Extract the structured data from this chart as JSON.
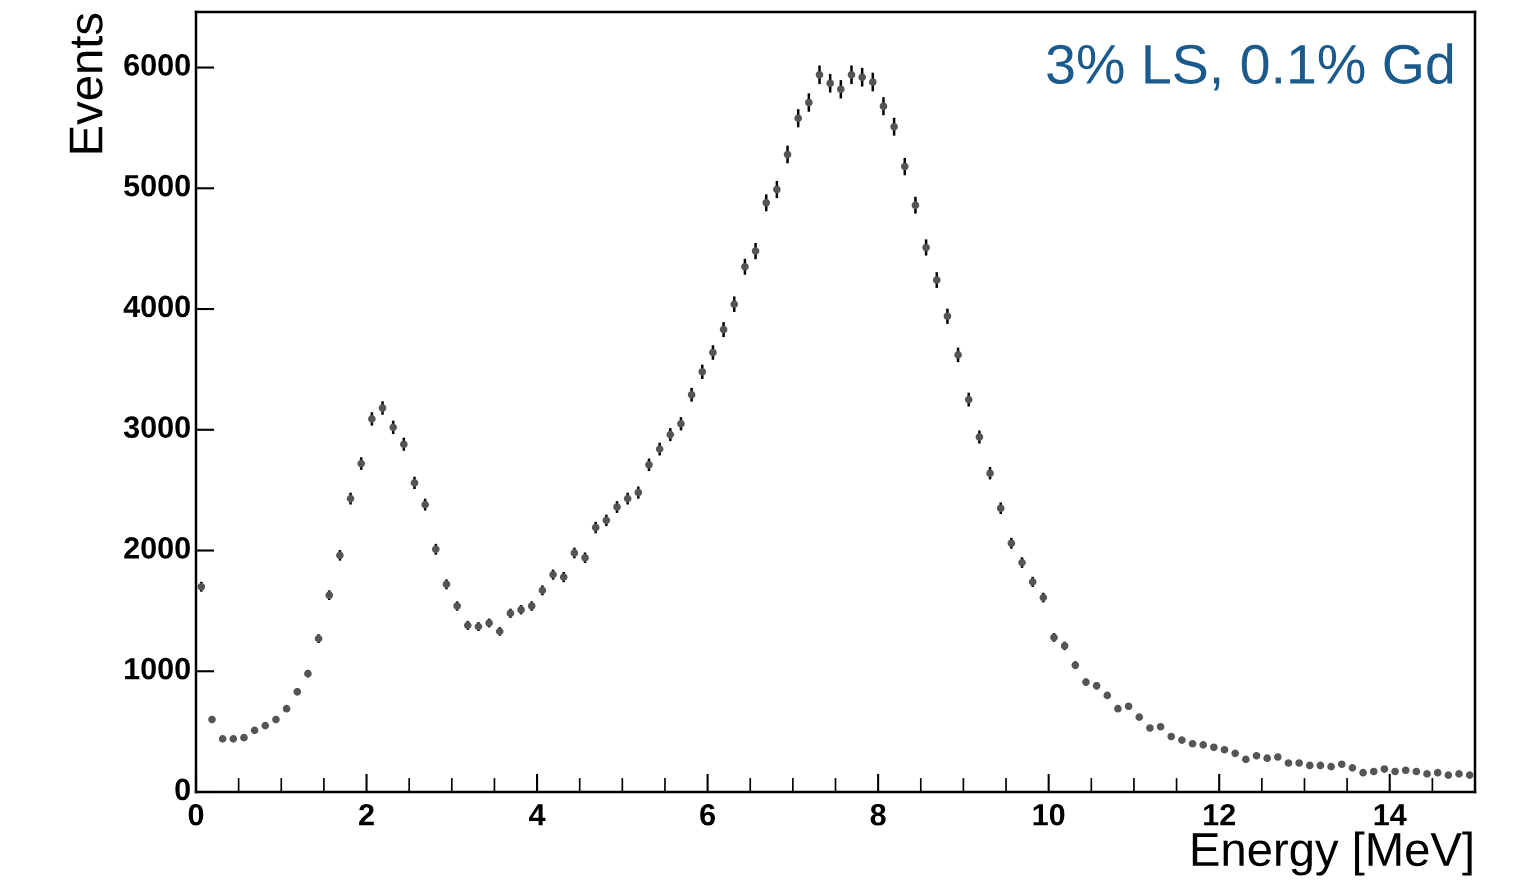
{
  "chart_data": {
    "type": "scatter",
    "xlabel": "Energy [MeV]",
    "ylabel": "Events",
    "annotations": [
      "3% LS, 0.1% Gd"
    ],
    "xlim": [
      0,
      15
    ],
    "xticks": [
      0,
      2,
      4,
      6,
      8,
      10,
      12,
      14
    ],
    "ylim": [
      0,
      6460
    ],
    "yticks": [
      0,
      1000,
      2000,
      3000,
      4000,
      5000,
      6000
    ],
    "grid": false,
    "marker": "circle",
    "x": [
      0.0625,
      0.1875,
      0.3125,
      0.4375,
      0.5625,
      0.6875,
      0.8125,
      0.9375,
      1.0625,
      1.1875,
      1.3125,
      1.4375,
      1.5625,
      1.6875,
      1.8125,
      1.9375,
      2.0625,
      2.1875,
      2.3125,
      2.4375,
      2.5625,
      2.6875,
      2.8125,
      2.9375,
      3.0625,
      3.1875,
      3.3125,
      3.4375,
      3.5625,
      3.6875,
      3.8125,
      3.9375,
      4.0625,
      4.1875,
      4.3125,
      4.4375,
      4.5625,
      4.6875,
      4.8125,
      4.9375,
      5.0625,
      5.1875,
      5.3125,
      5.4375,
      5.5625,
      5.6875,
      5.8125,
      5.9375,
      6.0625,
      6.1875,
      6.3125,
      6.4375,
      6.5625,
      6.6875,
      6.8125,
      6.9375,
      7.0625,
      7.1875,
      7.3125,
      7.4375,
      7.5625,
      7.6875,
      7.8125,
      7.9375,
      8.0625,
      8.1875,
      8.3125,
      8.4375,
      8.5625,
      8.6875,
      8.8125,
      8.9375,
      9.0625,
      9.1875,
      9.3125,
      9.4375,
      9.5625,
      9.6875,
      9.8125,
      9.9375,
      10.0625,
      10.1875,
      10.3125,
      10.4375,
      10.5625,
      10.6875,
      10.8125,
      10.9375,
      11.0625,
      11.1875,
      11.3125,
      11.4375,
      11.5625,
      11.6875,
      11.8125,
      11.9375,
      12.0625,
      12.1875,
      12.3125,
      12.4375,
      12.5625,
      12.6875,
      12.8125,
      12.9375,
      13.0625,
      13.1875,
      13.3125,
      13.4375,
      13.5625,
      13.6875,
      13.8125,
      13.9375,
      14.0625,
      14.1875,
      14.3125,
      14.4375,
      14.5625,
      14.6875,
      14.8125,
      14.9375
    ],
    "series": [
      {
        "color": "#555555",
        "values": [
          1700,
          600,
          440,
          440,
          450,
          510,
          550,
          600,
          690,
          830,
          980,
          1270,
          1630,
          1960,
          2430,
          2720,
          3090,
          3180,
          3020,
          2880,
          2560,
          2380,
          2010,
          1720,
          1540,
          1380,
          1370,
          1400,
          1330,
          1480,
          1510,
          1540,
          1670,
          1800,
          1780,
          1980,
          1940,
          2190,
          2250,
          2360,
          2430,
          2480,
          2710,
          2840,
          2960,
          3050,
          3290,
          3480,
          3640,
          3830,
          4040,
          4350,
          4480,
          4880,
          4990,
          5280,
          5580,
          5710,
          5940,
          5870,
          5820,
          5940,
          5920,
          5880,
          5680,
          5510,
          5180,
          4860,
          4510,
          4240,
          3940,
          3620,
          3250,
          2940,
          2640,
          2350,
          2060,
          1900,
          1740,
          1610,
          1280,
          1210,
          1050,
          910,
          880,
          800,
          690,
          710,
          620,
          530,
          540,
          460,
          430,
          400,
          390,
          370,
          350,
          320,
          270,
          300,
          280,
          290,
          240,
          240,
          220,
          220,
          210,
          230,
          200,
          160,
          170,
          190,
          170,
          180,
          170,
          150,
          160,
          140,
          150,
          140
        ],
        "errors": [
          41,
          24,
          21,
          21,
          21,
          23,
          23,
          24,
          26,
          29,
          31,
          36,
          40,
          44,
          49,
          52,
          56,
          56,
          55,
          54,
          51,
          49,
          45,
          41,
          39,
          37,
          37,
          37,
          36,
          38,
          39,
          39,
          41,
          42,
          42,
          44,
          44,
          47,
          47,
          49,
          49,
          50,
          52,
          53,
          54,
          55,
          57,
          59,
          60,
          62,
          64,
          66,
          67,
          70,
          71,
          73,
          75,
          76,
          77,
          77,
          76,
          77,
          77,
          77,
          75,
          74,
          72,
          70,
          67,
          65,
          63,
          60,
          57,
          54,
          51,
          48,
          45,
          44,
          42,
          40,
          36,
          35,
          32,
          30,
          30,
          28,
          26,
          27,
          25,
          23,
          23,
          22,
          21,
          20,
          20,
          19,
          19,
          18,
          16,
          17,
          17,
          17,
          16,
          15,
          15,
          15,
          14,
          15,
          14,
          13,
          13,
          14,
          13,
          13,
          13,
          12,
          12,
          12,
          12,
          12
        ]
      }
    ]
  }
}
